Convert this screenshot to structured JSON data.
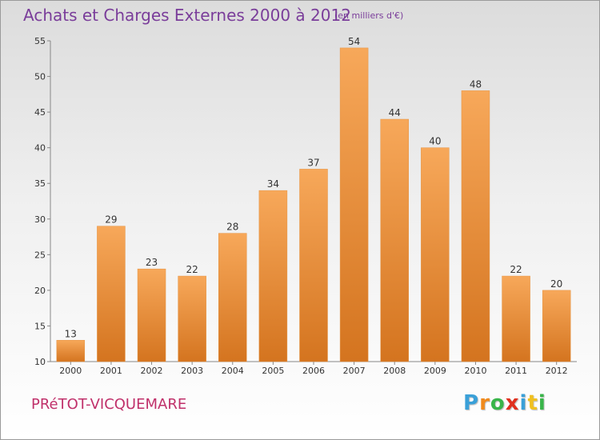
{
  "title": "Achats et Charges Externes 2000 à 2012",
  "unit": "(en milliers d'€)",
  "commune": "PRéTOT-VICQUEMARE",
  "logo": {
    "letters": [
      "P",
      "r",
      "o",
      "x",
      "i",
      "t",
      "i"
    ],
    "colors": [
      "#3aa0d8",
      "#f08a1c",
      "#39b54a",
      "#e0301e",
      "#3aa0d8",
      "#f0c020",
      "#39b54a"
    ]
  },
  "colors": {
    "bar_top": "#f7a85a",
    "bar_bottom": "#d4741f",
    "axis": "#888888",
    "text": "#333333"
  },
  "chart_data": {
    "type": "bar",
    "categories": [
      "2000",
      "2001",
      "2002",
      "2003",
      "2004",
      "2005",
      "2006",
      "2007",
      "2008",
      "2009",
      "2010",
      "2011",
      "2012"
    ],
    "values": [
      13,
      29,
      23,
      22,
      28,
      34,
      37,
      54,
      44,
      40,
      48,
      22,
      20
    ],
    "ylim": [
      10,
      55
    ],
    "yticks": [
      10,
      15,
      20,
      25,
      30,
      35,
      40,
      45,
      50,
      55
    ],
    "grid": false,
    "data_labels": true
  }
}
